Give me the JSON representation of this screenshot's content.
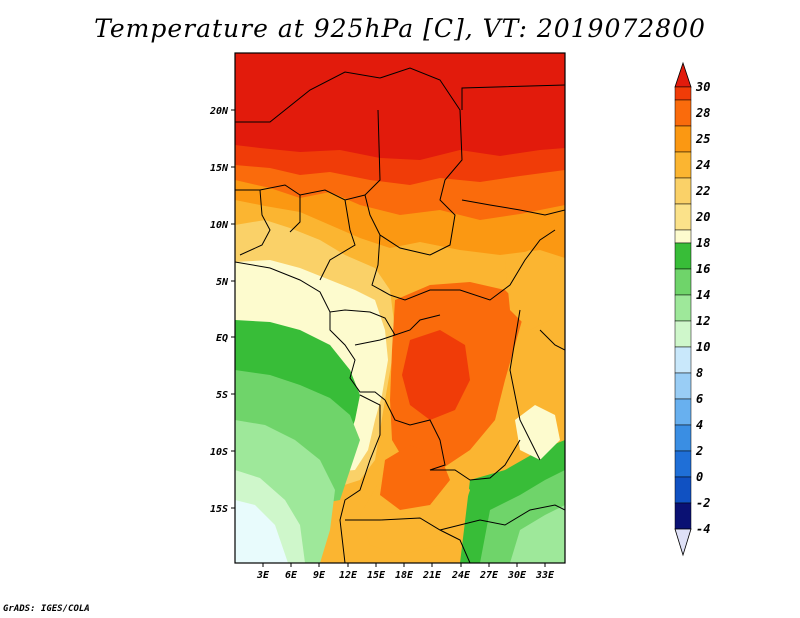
{
  "title": "Temperature at 925hPa [C], VT: 2019072800",
  "credit": "GrADS: IGES/COLA",
  "x_ticks": [
    "3E",
    "6E",
    "9E",
    "12E",
    "15E",
    "18E",
    "21E",
    "24E",
    "27E",
    "30E",
    "33E"
  ],
  "y_ticks": [
    "20N",
    "15N",
    "10N",
    "5N",
    "EQ",
    "5S",
    "10S",
    "15S"
  ],
  "colorbar": {
    "labels": [
      "30",
      "28",
      "25",
      "24",
      "22",
      "20",
      "18",
      "16",
      "14",
      "12",
      "10",
      "8",
      "6",
      "4",
      "2",
      "0",
      "-2",
      "-4"
    ],
    "colors": [
      "#e21b0c",
      "#f03c08",
      "#fa6b0c",
      "#fb9812",
      "#fbb531",
      "#fad168",
      "#fbeea1",
      "#fdfbce",
      "#38bd38",
      "#6fd46a",
      "#9ee89a",
      "#cff7cb",
      "#c9e8fb",
      "#99cdf5",
      "#68b0ef",
      "#3a8ee3",
      "#1f6fd7",
      "#1051c2",
      "#0d33a3",
      "#0a1173",
      "#dfe1f7"
    ]
  }
}
